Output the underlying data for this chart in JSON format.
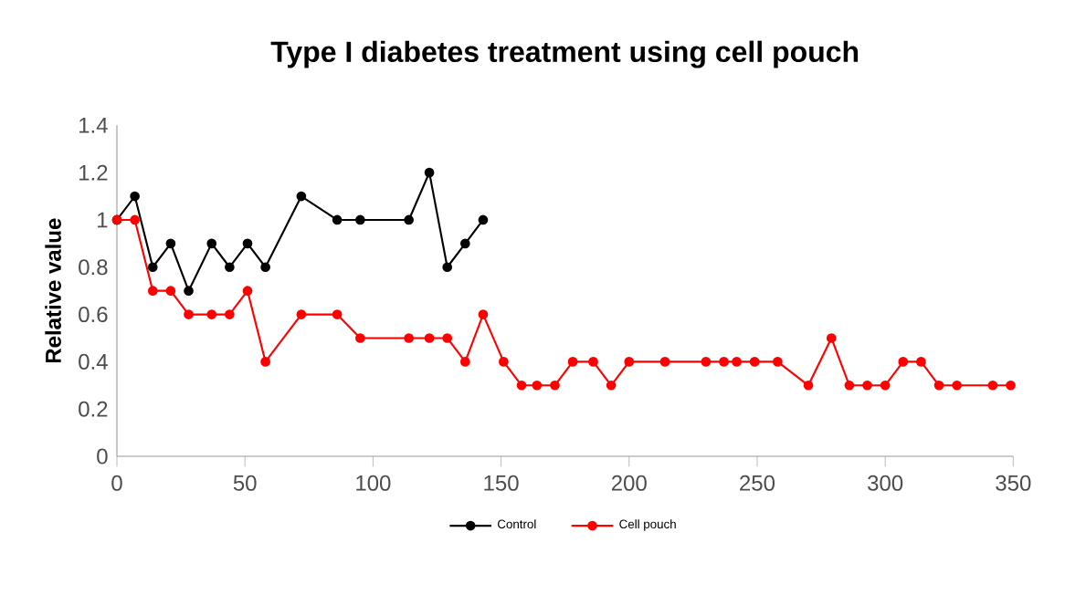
{
  "chart_data": {
    "type": "line",
    "title": "Type I diabetes treatment using cell pouch",
    "ylabel": "Relative value",
    "xlim": [
      0,
      350
    ],
    "xticks": [
      0,
      50,
      100,
      150,
      200,
      250,
      300,
      350
    ],
    "ylim": [
      0,
      1.4
    ],
    "yticks": [
      0,
      0.2,
      0.4,
      0.6,
      0.8,
      1,
      1.2,
      1.4
    ],
    "grid": false,
    "legend": "bottom",
    "marker": "circle",
    "line_style": "solid",
    "series": [
      {
        "name": "Control",
        "color": "#000000",
        "x": [
          0,
          7,
          14,
          21,
          28,
          37,
          44,
          51,
          58,
          72,
          86,
          95,
          114,
          122,
          129,
          136,
          143
        ],
        "values": [
          1,
          1.1,
          0.8,
          0.9,
          0.7,
          0.9,
          0.8,
          0.9,
          0.8,
          1.1,
          1.0,
          1.0,
          1.0,
          1.2,
          0.8,
          0.9,
          1.0
        ]
      },
      {
        "name": "Cell pouch",
        "color": "#ff0000",
        "x": [
          0,
          7,
          14,
          21,
          28,
          37,
          44,
          51,
          58,
          72,
          86,
          95,
          114,
          122,
          129,
          136,
          143,
          151,
          158,
          164,
          171,
          178,
          186,
          193,
          200,
          214,
          230,
          237,
          242,
          249,
          258,
          270,
          279,
          286,
          293,
          300,
          307,
          314,
          321,
          328,
          342,
          349
        ],
        "values": [
          1,
          1,
          0.7,
          0.7,
          0.6,
          0.6,
          0.6,
          0.7,
          0.4,
          0.6,
          0.6,
          0.5,
          0.5,
          0.5,
          0.5,
          0.4,
          0.6,
          0.4,
          0.3,
          0.3,
          0.3,
          0.4,
          0.4,
          0.3,
          0.4,
          0.4,
          0.4,
          0.4,
          0.4,
          0.4,
          0.4,
          0.3,
          0.5,
          0.3,
          0.3,
          0.3,
          0.4,
          0.4,
          0.3,
          0.3,
          0.3,
          0.3
        ]
      }
    ]
  }
}
